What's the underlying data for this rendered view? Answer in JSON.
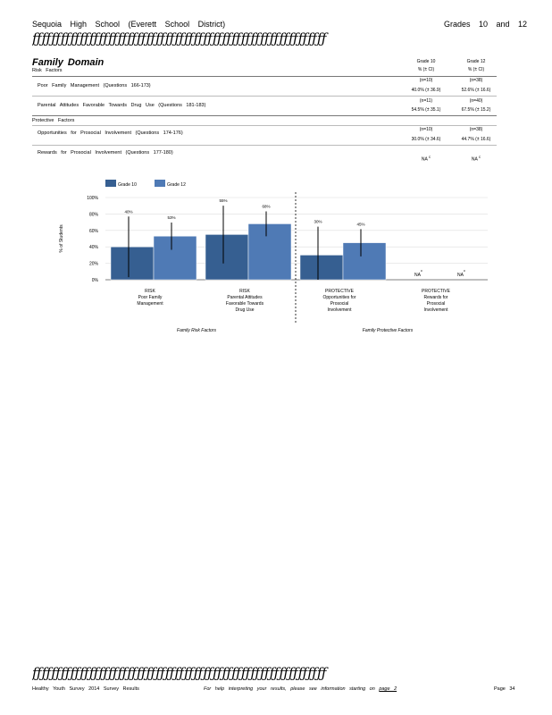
{
  "header": {
    "school": "Sequoia High School (Everett School District)",
    "grades": "Grades 10 and 12",
    "decor_line": "ƒƒƒƒƒƒƒƒƒƒƒƒƒƒƒƒƒƒƒƒƒƒƒƒƒƒƒƒƒƒƒƒƒƒƒƒƒƒƒƒƒƒƒƒƒƒƒƒƒƒƒƒƒƒƒƒƒƒƒƒƒƒ"
  },
  "section": {
    "title": "Family Domain",
    "risk_label": "Risk Factors",
    "protective_label": "Protective Factors",
    "col_heads": [
      {
        "grade": "Grade 10",
        "sub": "% (± CI)"
      },
      {
        "grade": "Grade 12",
        "sub": "% (± CI)"
      }
    ],
    "rows": [
      {
        "label": "Poor Family Management (Questions 166-173)",
        "g10_n": "(n=10)",
        "g10_val": "40.0% (± 36.9)",
        "g12_n": "(n=38)",
        "g12_val": "52.6% (± 16.6)"
      },
      {
        "label": "Parental Attitudes Favorable Towards Drug Use (Questions 181-183)",
        "g10_n": "(n=11)",
        "g10_val": "54.5% (± 35.1)",
        "g12_n": "(n=40)",
        "g12_val": "67.5% (± 15.2)"
      },
      {
        "label": "Opportunities for Prosocial Involvement (Questions 174-176)",
        "g10_n": "(n=10)",
        "g10_val": "30.0% (± 34.6)",
        "g12_n": "(n=38)",
        "g12_val": "44.7% (± 16.6)"
      },
      {
        "label": "Rewards for Prosocial Involvement (Questions 177-180)",
        "g10_val": "NA",
        "g10_sup": "c",
        "g12_val": "NA",
        "g12_sup": "c"
      }
    ]
  },
  "chart_data": {
    "type": "bar",
    "ylabel": "% of Students",
    "ylim": [
      0,
      100
    ],
    "yticks": [
      "100%",
      "80%",
      "60%",
      "40%",
      "20%",
      "0%"
    ],
    "legend": [
      "Grade 10",
      "Grade 12"
    ],
    "colors": {
      "Grade 10": "#365f91",
      "Grade 12": "#4f7ab5"
    },
    "categories": [
      [
        "RISK",
        "Poor Family",
        "Management"
      ],
      [
        "RISK",
        "Parental Attitudes",
        "Favorable Towards",
        "Drug Use"
      ],
      [
        "PROTECTIVE",
        "Opportunities for",
        "Prosocial",
        "Involvement"
      ],
      [
        "PROTECTIVE",
        "Rewards for",
        "Prosocial",
        "Involvement"
      ]
    ],
    "series": [
      {
        "name": "Grade 10",
        "values": [
          40,
          55,
          30,
          null
        ],
        "ci": [
          36.9,
          35.1,
          34.6,
          null
        ],
        "labels": [
          "40%",
          "55%",
          "30%",
          "NA"
        ]
      },
      {
        "name": "Grade 12",
        "values": [
          53,
          68,
          45,
          null
        ],
        "ci": [
          16.6,
          15.2,
          16.6,
          null
        ],
        "labels": [
          "53%",
          "68%",
          "45%",
          "NA"
        ]
      }
    ],
    "na_sup": "c",
    "group_labels": [
      "Family Risk Factors",
      "Family Protective Factors"
    ]
  },
  "footer": {
    "decor_line": "ƒƒƒƒƒƒƒƒƒƒƒƒƒƒƒƒƒƒƒƒƒƒƒƒƒƒƒƒƒƒƒƒƒƒƒƒƒƒƒƒƒƒƒƒƒƒƒƒƒƒƒƒƒƒƒƒƒƒƒƒƒƒ",
    "left": "Healthy Youth Survey 2014 Survey Results",
    "help": "For help interpreting your results, please see information starting on",
    "help_link": "page 2",
    "page": "Page 34"
  }
}
